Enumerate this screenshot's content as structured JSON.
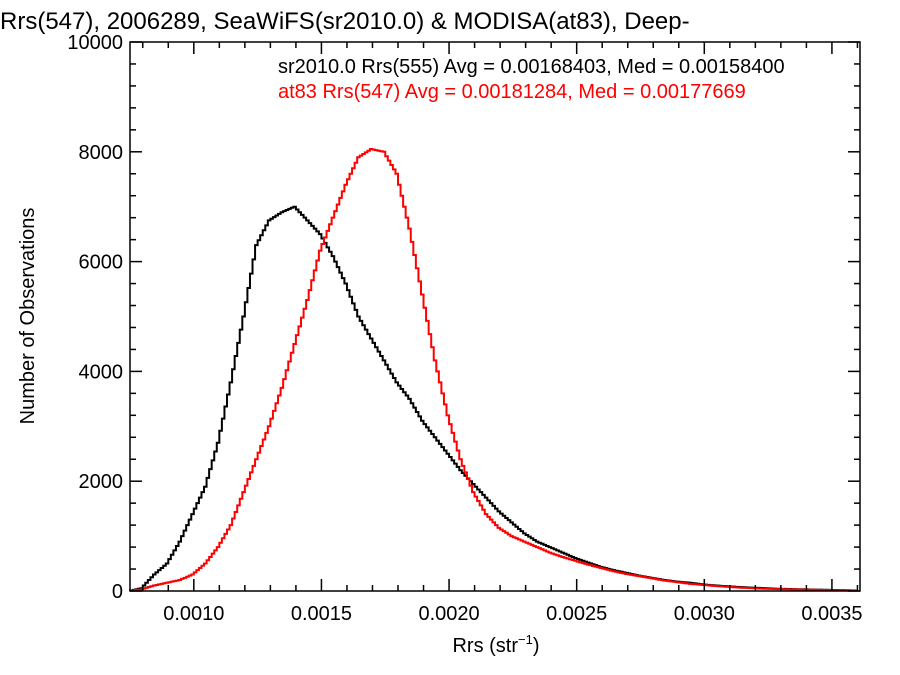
{
  "chart_data": {
    "type": "line",
    "title": "Rrs(547), 2006289, SeaWiFS(sr2010.0) & MODISA(at83), Deep-",
    "xlabel_main": "Rrs (str",
    "xlabel_sup": "−1",
    "xlabel_close": ")",
    "ylabel": "Number of Observations",
    "xlim": [
      0.00075,
      0.00361
    ],
    "ylim": [
      0,
      10000
    ],
    "x_ticks": [
      0.001,
      0.0015,
      0.002,
      0.0025,
      0.003,
      0.0035
    ],
    "x_tick_labels": [
      "0.0010",
      "0.0015",
      "0.0020",
      "0.0025",
      "0.0030",
      "0.0035"
    ],
    "y_ticks": [
      0,
      2000,
      4000,
      6000,
      8000,
      10000
    ],
    "y_tick_labels": [
      "0",
      "2000",
      "4000",
      "6000",
      "8000",
      "10000"
    ],
    "grid": false,
    "legend_position": "top-right",
    "annotations": [
      {
        "text": "sr2010.0 Rrs(555) Avg = 0.00168403, Med = 0.00158400",
        "color": "#000000"
      },
      {
        "text": "at83 Rrs(547) Avg = 0.00181284, Med = 0.00177669",
        "color": "#ff0000"
      }
    ],
    "series": [
      {
        "color": "#000000",
        "x": [
          0.00075,
          0.0008,
          0.00085,
          0.0009,
          0.00095,
          0.001,
          0.00105,
          0.0011,
          0.00115,
          0.0012,
          0.00125,
          0.0013,
          0.00135,
          0.0014,
          0.00145,
          0.0015,
          0.00155,
          0.0016,
          0.00165,
          0.0017,
          0.00175,
          0.0018,
          0.00185,
          0.0019,
          0.00195,
          0.002,
          0.00205,
          0.0021,
          0.00215,
          0.0022,
          0.00225,
          0.0023,
          0.00235,
          0.0024,
          0.00245,
          0.0025,
          0.00255,
          0.0026,
          0.00265,
          0.0027,
          0.00275,
          0.0028,
          0.00285,
          0.0029,
          0.00295,
          0.003,
          0.00305,
          0.0031,
          0.00315,
          0.0032,
          0.00325,
          0.0033,
          0.00335,
          0.0034,
          0.00345,
          0.0035,
          0.00355,
          0.0036
        ],
        "y": [
          0,
          50,
          300,
          500,
          900,
          1400,
          1900,
          2700,
          3800,
          5000,
          6300,
          6750,
          6900,
          7000,
          6750,
          6500,
          6100,
          5600,
          5000,
          4600,
          4200,
          3800,
          3500,
          3100,
          2800,
          2500,
          2200,
          1950,
          1700,
          1450,
          1250,
          1050,
          900,
          800,
          700,
          600,
          520,
          440,
          380,
          330,
          280,
          240,
          200,
          170,
          150,
          120,
          100,
          85,
          70,
          60,
          50,
          40,
          35,
          30,
          25,
          20,
          15,
          10
        ]
      },
      {
        "color": "#ff0000",
        "x": [
          0.00075,
          0.0008,
          0.00085,
          0.0009,
          0.00095,
          0.001,
          0.00105,
          0.0011,
          0.00115,
          0.0012,
          0.00125,
          0.0013,
          0.00135,
          0.0014,
          0.00145,
          0.0015,
          0.00155,
          0.0016,
          0.00165,
          0.0017,
          0.00175,
          0.0018,
          0.00185,
          0.0019,
          0.00195,
          0.002,
          0.00205,
          0.0021,
          0.00215,
          0.0022,
          0.00225,
          0.0023,
          0.00235,
          0.0024,
          0.00245,
          0.0025,
          0.00255,
          0.0026,
          0.00265,
          0.0027,
          0.00275,
          0.0028,
          0.00285,
          0.0029,
          0.00295,
          0.003,
          0.00305,
          0.0031,
          0.00315,
          0.0032,
          0.00325,
          0.0033,
          0.00335,
          0.0034,
          0.00345,
          0.0035,
          0.00355,
          0.0036
        ],
        "y": [
          0,
          30,
          100,
          150,
          200,
          300,
          500,
          800,
          1200,
          1800,
          2400,
          3000,
          3700,
          4500,
          5300,
          6200,
          6800,
          7400,
          7900,
          8050,
          8000,
          7600,
          6600,
          5400,
          4200,
          3200,
          2400,
          1800,
          1400,
          1150,
          1000,
          900,
          800,
          700,
          620,
          550,
          480,
          420,
          360,
          310,
          270,
          230,
          190,
          160,
          130,
          110,
          90,
          75,
          60,
          50,
          40,
          35,
          30,
          25,
          20,
          15,
          10,
          8
        ]
      }
    ]
  }
}
